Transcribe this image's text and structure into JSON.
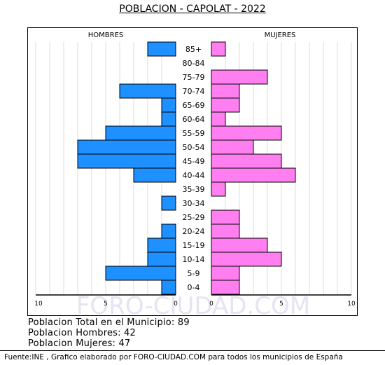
{
  "title": "POBLACION - CAPOLAT - 2022",
  "watermark": "FORO-CIUDAD.COM",
  "chart_data": {
    "type": "bar",
    "orientation": "horizontal-pyramid",
    "categories": [
      "85+",
      "80-84",
      "75-79",
      "70-74",
      "65-69",
      "60-64",
      "55-59",
      "50-54",
      "45-49",
      "40-44",
      "35-39",
      "30-34",
      "25-29",
      "20-24",
      "15-19",
      "10-14",
      "5-9",
      "0-4"
    ],
    "series": [
      {
        "name": "HOMBRES",
        "color": "#1e90ff",
        "values": [
          2,
          0,
          0,
          4,
          1,
          1,
          5,
          7,
          7,
          3,
          0,
          1,
          0,
          1,
          2,
          2,
          5,
          1
        ]
      },
      {
        "name": "MUJERES",
        "color": "#ff7ff0",
        "values": [
          1,
          0,
          4,
          2,
          2,
          1,
          5,
          3,
          5,
          6,
          1,
          0,
          2,
          2,
          4,
          5,
          2,
          2
        ]
      }
    ],
    "xlim": [
      0,
      10
    ],
    "xticks": [
      "10",
      "5",
      "0",
      "0",
      "5",
      "10"
    ],
    "grid": true
  },
  "summary": {
    "total": "Poblacion Total en el Municipio: 89",
    "men": "Poblacion Hombres: 42",
    "women": "Poblacion Mujeres: 47"
  },
  "footer": "Fuente:INE , Grafico elaborado por FORO-CIUDAD.COM para todos los municipios de España"
}
